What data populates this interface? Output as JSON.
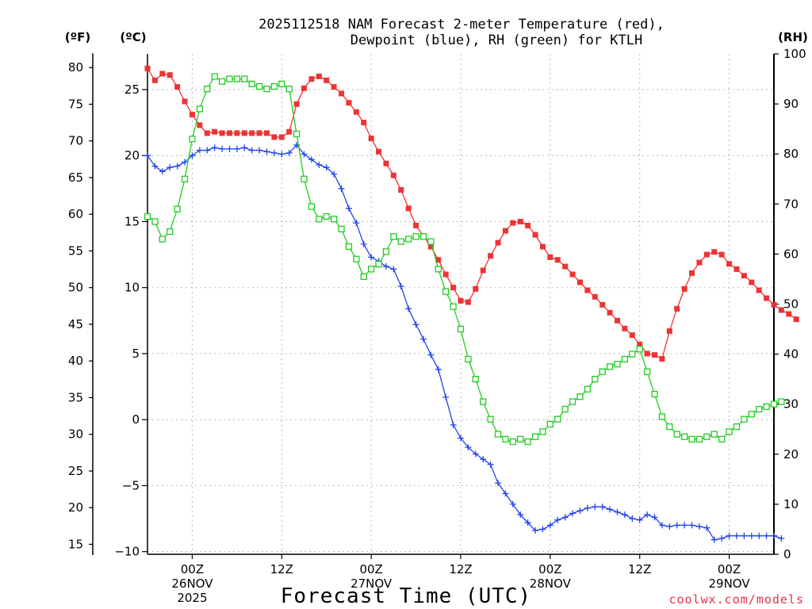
{
  "chart_data": {
    "type": "line",
    "title_lines": [
      "2025112518 NAM Forecast 2-meter Temperature (red),",
      "Dewpoint (blue), RH (green) for KTLH"
    ],
    "xlabel": "Forecast Time (UTC)",
    "credit": "coolwx.com/models",
    "units": {
      "fahrenheit": "(ºF)",
      "celsius": "(ºC)",
      "rh": "(RH)"
    },
    "x_forecast_hours": {
      "start": 0,
      "end": 84,
      "step": 1
    },
    "x_ticks": [
      {
        "hour": 6,
        "lines": [
          "00Z",
          "26NOV",
          "2025"
        ]
      },
      {
        "hour": 18,
        "lines": [
          "12Z"
        ]
      },
      {
        "hour": 30,
        "lines": [
          "00Z",
          "27NOV"
        ]
      },
      {
        "hour": 42,
        "lines": [
          "12Z"
        ]
      },
      {
        "hour": 54,
        "lines": [
          "00Z",
          "28NOV"
        ]
      },
      {
        "hour": 66,
        "lines": [
          "12Z"
        ]
      },
      {
        "hour": 78,
        "lines": [
          "00Z",
          "29NOV"
        ]
      }
    ],
    "left_celsius_axis": {
      "ylim": [
        -10.2,
        27.7
      ],
      "ticks": [
        "25",
        "20",
        "15",
        "10",
        "5",
        "0",
        "−5",
        "−10"
      ],
      "tick_values": [
        25,
        20,
        15,
        10,
        5,
        0,
        -5,
        -10
      ]
    },
    "left_fahrenheit_axis": {
      "ticks": [
        "80",
        "75",
        "70",
        "65",
        "60",
        "55",
        "50",
        "45",
        "40",
        "35",
        "30",
        "25",
        "20",
        "15"
      ],
      "tick_values": [
        80,
        75,
        70,
        65,
        60,
        55,
        50,
        45,
        40,
        35,
        30,
        25,
        20,
        15
      ]
    },
    "right_rh_axis": {
      "ylim": [
        0,
        100
      ],
      "ticks": [
        "100",
        "90",
        "80",
        "70",
        "60",
        "50",
        "40",
        "30",
        "20",
        "10",
        "0"
      ],
      "tick_values": [
        100,
        90,
        80,
        70,
        60,
        50,
        40,
        30,
        20,
        10,
        0
      ]
    },
    "series": [
      {
        "name": "2-meter Temperature",
        "axis": "celsius",
        "color": "#ee3333",
        "marker": "filled-square",
        "values": [
          26.6,
          25.7,
          26.2,
          26.1,
          25.2,
          24.1,
          23.1,
          22.3,
          21.7,
          21.8,
          21.7,
          21.7,
          21.7,
          21.7,
          21.7,
          21.7,
          21.7,
          21.4,
          21.4,
          21.8,
          23.9,
          25.1,
          25.8,
          26.0,
          25.7,
          25.2,
          24.7,
          24.0,
          23.3,
          22.5,
          21.3,
          20.3,
          19.4,
          18.5,
          17.4,
          16.0,
          14.7,
          13.9,
          13.1,
          12.1,
          11.0,
          10.0,
          9.0,
          8.9,
          9.9,
          11.3,
          12.4,
          13.4,
          14.3,
          14.9,
          15.0,
          14.7,
          14.0,
          13.1,
          12.3,
          12.1,
          11.6,
          11.0,
          10.4,
          9.8,
          9.3,
          8.7,
          8.1,
          7.5,
          6.9,
          6.4,
          5.7,
          5.0,
          4.9,
          4.6,
          6.7,
          8.4,
          9.9,
          11.1,
          11.9,
          12.5,
          12.7,
          12.5,
          11.8,
          11.4,
          10.9,
          10.4,
          9.8,
          9.2,
          8.7,
          8.3,
          8.0,
          7.6
        ]
      },
      {
        "name": "Dewpoint",
        "axis": "celsius",
        "color": "#2244ee",
        "marker": "plus",
        "values": [
          20.0,
          19.2,
          18.8,
          19.1,
          19.2,
          19.5,
          20.0,
          20.4,
          20.4,
          20.6,
          20.5,
          20.5,
          20.5,
          20.6,
          20.4,
          20.4,
          20.3,
          20.2,
          20.1,
          20.2,
          20.8,
          20.1,
          19.7,
          19.3,
          19.1,
          18.6,
          17.5,
          16.0,
          14.9,
          13.3,
          12.3,
          12.0,
          11.6,
          11.4,
          10.1,
          8.4,
          7.2,
          6.1,
          4.9,
          3.8,
          1.7,
          -0.4,
          -1.4,
          -2.1,
          -2.6,
          -3.0,
          -3.4,
          -4.8,
          -5.6,
          -6.4,
          -7.2,
          -7.8,
          -8.4,
          -8.3,
          -8.0,
          -7.6,
          -7.4,
          -7.1,
          -6.9,
          -6.7,
          -6.6,
          -6.6,
          -6.8,
          -7.0,
          -7.2,
          -7.5,
          -7.6,
          -7.2,
          -7.4,
          -8.0,
          -8.1,
          -8.0,
          -8.0,
          -8.0,
          -8.1,
          -8.2,
          -9.1,
          -9.0,
          -8.8,
          -8.8,
          -8.8,
          -8.8,
          -8.8,
          -8.8,
          -8.8,
          -9.0
        ]
      },
      {
        "name": "Relative Humidity",
        "axis": "rh",
        "color": "#22cc22",
        "marker": "open-square",
        "values": [
          67.5,
          66.5,
          63.0,
          64.5,
          69.0,
          75.0,
          83.0,
          89.0,
          93.0,
          95.5,
          94.5,
          95.0,
          95.0,
          95.0,
          94.0,
          93.5,
          93.0,
          93.5,
          94.0,
          93.0,
          84.0,
          75.0,
          69.5,
          67.0,
          67.5,
          67.0,
          65.0,
          61.5,
          59.0,
          55.5,
          57.0,
          58.0,
          60.5,
          63.5,
          62.5,
          63.0,
          63.5,
          63.5,
          62.5,
          57.0,
          52.5,
          49.5,
          45.0,
          39.0,
          35.0,
          30.5,
          27.0,
          24.0,
          23.0,
          22.5,
          23.0,
          22.5,
          23.5,
          24.5,
          26.0,
          27.0,
          29.0,
          30.5,
          31.5,
          33.0,
          35.0,
          36.5,
          37.5,
          38.0,
          39.0,
          40.0,
          41.0,
          36.5,
          32.0,
          27.5,
          25.5,
          24.0,
          23.5,
          23.0,
          23.0,
          23.5,
          24.0,
          23.0,
          24.5,
          25.5,
          27.0,
          28.0,
          29.0,
          29.5,
          30.0,
          30.5
        ]
      }
    ]
  }
}
